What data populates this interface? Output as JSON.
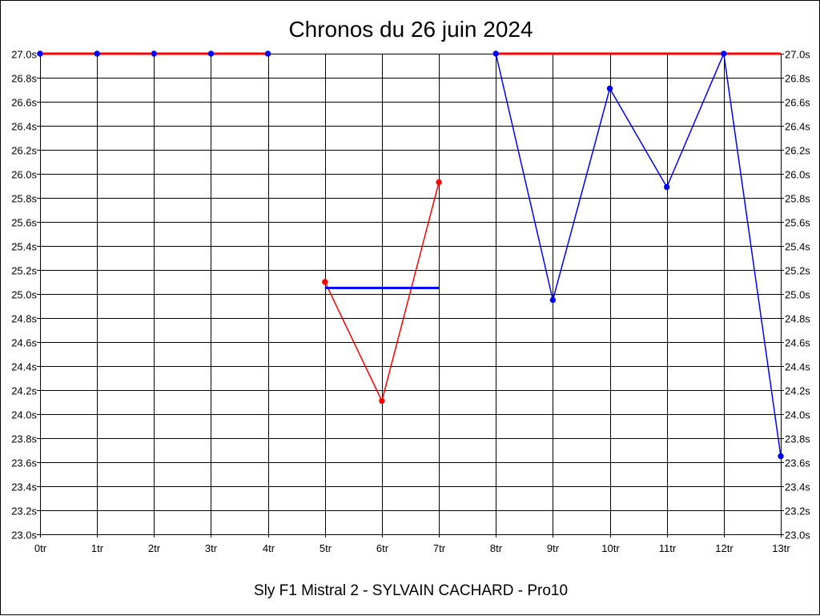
{
  "chart_data": {
    "type": "line",
    "title": "Chronos du 26 juin 2024",
    "caption": "Sly F1 Mistral 2 - SYLVAIN CACHARD - Pro10",
    "xlabel": "",
    "ylabel": "",
    "x_ticks": [
      "0tr",
      "1tr",
      "2tr",
      "3tr",
      "4tr",
      "5tr",
      "6tr",
      "7tr",
      "8tr",
      "9tr",
      "10tr",
      "11tr",
      "12tr",
      "13tr"
    ],
    "y_ticks": [
      "23.0s",
      "23.2s",
      "23.4s",
      "23.6s",
      "23.8s",
      "24.0s",
      "24.2s",
      "24.4s",
      "24.6s",
      "24.8s",
      "25.0s",
      "25.2s",
      "25.4s",
      "25.6s",
      "25.8s",
      "26.0s",
      "26.2s",
      "26.4s",
      "26.6s",
      "26.8s",
      "27.0s"
    ],
    "xlim": [
      0,
      13
    ],
    "ylim": [
      23.0,
      27.0
    ],
    "grid": true,
    "y_axis_both_sides": true,
    "series": [
      {
        "color": "#ff0000",
        "style": "line",
        "points": [
          [
            0,
            27.0
          ],
          [
            1,
            27.0
          ],
          [
            2,
            27.0
          ],
          [
            3,
            27.0
          ],
          [
            4,
            27.0
          ]
        ],
        "markers": [
          {
            "x": 0,
            "y": 27.0,
            "color": "#0000ff"
          },
          {
            "x": 1,
            "y": 27.0,
            "color": "#0000ff"
          },
          {
            "x": 2,
            "y": 27.0,
            "color": "#0000ff"
          },
          {
            "x": 3,
            "y": 27.0,
            "color": "#0000ff"
          },
          {
            "x": 4,
            "y": 27.0,
            "color": "#0000ff"
          }
        ]
      },
      {
        "color": "#ff0000",
        "style": "line",
        "points": [
          [
            5,
            25.1
          ],
          [
            6,
            24.11
          ],
          [
            7,
            25.93
          ]
        ],
        "markers": [
          {
            "x": 5,
            "y": 25.1,
            "color": "#ff0000"
          },
          {
            "x": 6,
            "y": 24.11,
            "color": "#ff0000"
          },
          {
            "x": 7,
            "y": 25.93,
            "color": "#ff0000"
          }
        ]
      },
      {
        "color": "#0000ff",
        "style": "line",
        "points": [
          [
            5,
            25.05
          ],
          [
            7,
            25.05
          ]
        ],
        "markers": []
      },
      {
        "color": "#ff0000",
        "style": "line",
        "points": [
          [
            8,
            27.0
          ],
          [
            13,
            27.0
          ]
        ],
        "markers": []
      },
      {
        "color": "#0000ff",
        "style": "line",
        "points": [
          [
            8,
            27.0
          ],
          [
            9,
            24.95
          ],
          [
            10,
            26.71
          ],
          [
            11,
            25.89
          ],
          [
            12,
            27.0
          ],
          [
            13,
            23.65
          ]
        ],
        "markers": [
          {
            "x": 8,
            "y": 27.0,
            "color": "#0000ff"
          },
          {
            "x": 9,
            "y": 24.95,
            "color": "#0000ff"
          },
          {
            "x": 10,
            "y": 26.71,
            "color": "#0000ff"
          },
          {
            "x": 11,
            "y": 25.89,
            "color": "#0000ff"
          },
          {
            "x": 12,
            "y": 27.0,
            "color": "#0000ff"
          },
          {
            "x": 13,
            "y": 23.65,
            "color": "#0000ff"
          }
        ]
      }
    ]
  }
}
